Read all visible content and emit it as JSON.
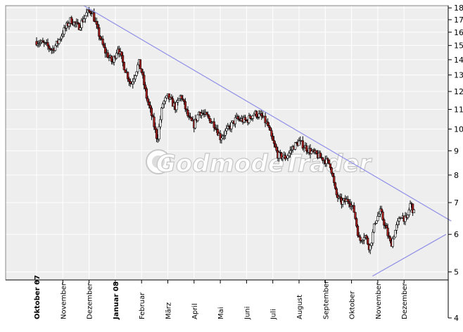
{
  "chart_data": {
    "type": "candlestick",
    "title": "",
    "xlabel": "",
    "ylabel": "",
    "y_scale": "log",
    "ylim": [
      4,
      18.2
    ],
    "grid": true,
    "y_ticks": [
      18,
      17,
      16,
      15,
      14,
      13,
      12,
      11,
      10,
      9,
      8,
      7,
      6,
      5,
      4
    ],
    "x_ticks": [
      {
        "label": "Oktober 07",
        "bold": true
      },
      {
        "label": "November",
        "bold": false
      },
      {
        "label": "Dezember",
        "bold": false
      },
      {
        "label": "Januar 08",
        "bold": true
      },
      {
        "label": "Februar",
        "bold": false
      },
      {
        "label": "März",
        "bold": false
      },
      {
        "label": "April",
        "bold": false
      },
      {
        "label": "Mai",
        "bold": false
      },
      {
        "label": "Juni",
        "bold": false
      },
      {
        "label": "Juli",
        "bold": false
      },
      {
        "label": "August",
        "bold": false
      },
      {
        "label": "September",
        "bold": false
      },
      {
        "label": "Oktober",
        "bold": false
      },
      {
        "label": "November",
        "bold": false
      },
      {
        "label": "Dezember",
        "bold": false
      }
    ],
    "close_path": [
      [
        0,
        15.3
      ],
      [
        0.3,
        15.1
      ],
      [
        0.6,
        14.7
      ],
      [
        0.8,
        15.2
      ],
      [
        1.0,
        16.0
      ],
      [
        1.3,
        17.0
      ],
      [
        1.6,
        16.4
      ],
      [
        1.9,
        17.5
      ],
      [
        2.1,
        17.8
      ],
      [
        2.3,
        16.3
      ],
      [
        2.6,
        14.6
      ],
      [
        2.9,
        13.8
      ],
      [
        3.1,
        14.9
      ],
      [
        3.3,
        13.7
      ],
      [
        3.6,
        12.4
      ],
      [
        3.9,
        13.8
      ],
      [
        4.0,
        13.2
      ],
      [
        4.2,
        11.6
      ],
      [
        4.4,
        10.6
      ],
      [
        4.6,
        9.5
      ],
      [
        4.8,
        11.3
      ],
      [
        5.0,
        11.7
      ],
      [
        5.3,
        11.1
      ],
      [
        5.5,
        11.8
      ],
      [
        5.8,
        10.5
      ],
      [
        6.0,
        10.2
      ],
      [
        6.2,
        10.9
      ],
      [
        6.5,
        10.6
      ],
      [
        6.8,
        10.2
      ],
      [
        7.0,
        9.6
      ],
      [
        7.3,
        10.0
      ],
      [
        7.6,
        10.5
      ],
      [
        8.0,
        10.4
      ],
      [
        8.3,
        10.8
      ],
      [
        8.6,
        10.6
      ],
      [
        8.8,
        10.2
      ],
      [
        9.0,
        9.4
      ],
      [
        9.2,
        8.8
      ],
      [
        9.5,
        8.7
      ],
      [
        9.8,
        9.2
      ],
      [
        10.0,
        9.4
      ],
      [
        10.2,
        9.2
      ],
      [
        10.4,
        9.0
      ],
      [
        10.7,
        8.8
      ],
      [
        11.0,
        8.6
      ],
      [
        11.2,
        8.4
      ],
      [
        11.4,
        7.3
      ],
      [
        11.6,
        7.0
      ],
      [
        11.9,
        7.1
      ],
      [
        12.1,
        6.7
      ],
      [
        12.3,
        5.8
      ],
      [
        12.5,
        6.0
      ],
      [
        12.7,
        5.6
      ],
      [
        12.9,
        6.4
      ],
      [
        13.1,
        6.7
      ],
      [
        13.3,
        6.2
      ],
      [
        13.5,
        5.7
      ],
      [
        13.7,
        6.2
      ],
      [
        13.9,
        6.6
      ],
      [
        14.1,
        6.4
      ],
      [
        14.25,
        7.0
      ],
      [
        14.4,
        6.6
      ]
    ],
    "resistance_trendline": [
      [
        1.8,
        18.2
      ],
      [
        15.8,
        6.4
      ]
    ],
    "support_trendline": [
      [
        12.8,
        4.9
      ],
      [
        15.6,
        6.0
      ]
    ],
    "colors": {
      "plot_bg": "#eeeeee",
      "grid": "#ffffff",
      "up_candle": "#ffffff",
      "down_candle": "#a82020",
      "trendline": "#8f8fe8",
      "axis": "#000000"
    },
    "watermark": "GodmodeTrader"
  }
}
